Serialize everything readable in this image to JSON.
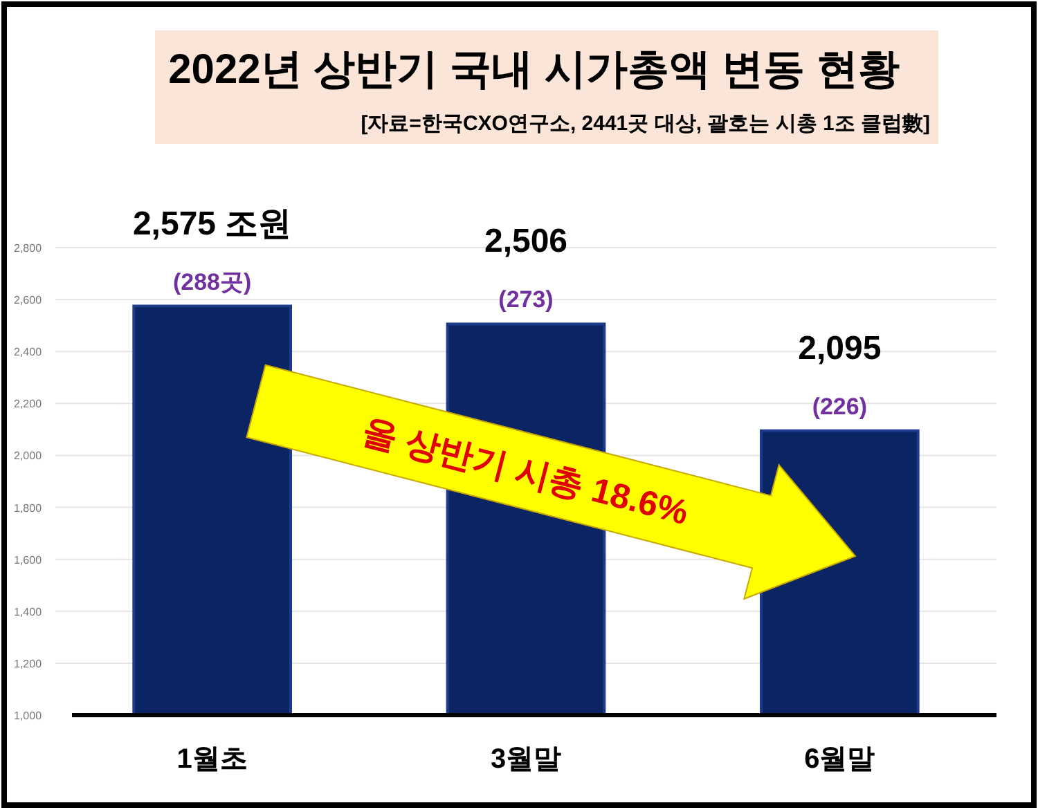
{
  "chart_data": {
    "type": "bar",
    "title": "2022년 상반기 국내 시가총액  변동 현황",
    "subtitle": "[자료=한국CXO연구소, 2441곳 대상, 괄호는 시총 1조 클럽數]",
    "categories": [
      "1월초",
      "3월말",
      "6월말"
    ],
    "values": [
      2575,
      2506,
      2095
    ],
    "color": "#0b2463",
    "value_labels": [
      "2,575 조원",
      "2,506",
      "2,095"
    ],
    "ylim": [
      1000,
      2800
    ],
    "yticks": [
      {
        "value": 1000,
        "label": "1,000"
      },
      {
        "value": 1200,
        "label": "1,200"
      },
      {
        "value": 1400,
        "label": "1,400"
      },
      {
        "value": 1600,
        "label": "1,600"
      },
      {
        "value": 1800,
        "label": "1,800"
      },
      {
        "value": 2000,
        "label": "2,000"
      },
      {
        "value": 2200,
        "label": "2,200"
      },
      {
        "value": 2400,
        "label": "2,400"
      },
      {
        "value": 2600,
        "label": "2,600"
      },
      {
        "value": 2800,
        "label": "2,800"
      }
    ],
    "grid": "y",
    "annotations": [
      {
        "text": "(288곳)",
        "x": "1월초",
        "y": 2575
      },
      {
        "text": "(273)",
        "x": "3월말",
        "y": 2506
      },
      {
        "text": "(226)",
        "x": "6월말",
        "y": 2095
      },
      "올 상반기 시총 18.6%"
    ]
  }
}
